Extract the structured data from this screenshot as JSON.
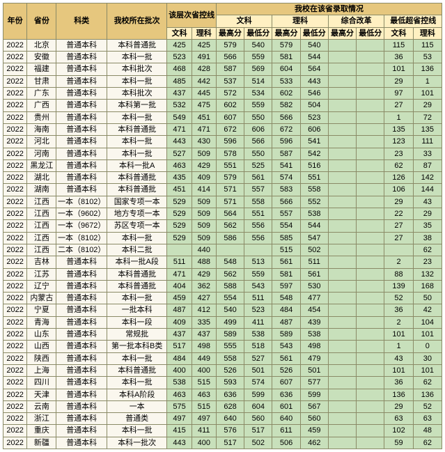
{
  "colors": {
    "hdr_primary": "#e6c77e",
    "hdr_secondary": "#fff0c2",
    "body_left": "#faf7ee",
    "body_right": "#c8e0bb",
    "border": "#8a8a66"
  },
  "header": {
    "year": "年份",
    "province": "省份",
    "category": "科类",
    "batch": "我校所在批次",
    "ctrl_line": "该层次省控线",
    "admission": "我校在该省录取情况",
    "wen": "文科",
    "li": "理科",
    "zonghe": "综合改革",
    "diff": "最低超省控线",
    "max": "最高分",
    "min": "最低分"
  },
  "rows": [
    {
      "yr": "2022",
      "pv": "北京",
      "kl": "普通本科",
      "pc": "本科普通批",
      "cw": "425",
      "cl": "425",
      "wmx": "579",
      "wmn": "540",
      "lmx": "579",
      "lmn": "540",
      "zmx": "",
      "zmn": "",
      "dw": "115",
      "dl": "115"
    },
    {
      "yr": "2022",
      "pv": "安徽",
      "kl": "普通本科",
      "pc": "本科一批",
      "cw": "523",
      "cl": "491",
      "wmx": "566",
      "wmn": "559",
      "lmx": "581",
      "lmn": "544",
      "zmx": "",
      "zmn": "",
      "dw": "36",
      "dl": "53"
    },
    {
      "yr": "2022",
      "pv": "福建",
      "kl": "普通本科",
      "pc": "本科批次",
      "cw": "468",
      "cl": "428",
      "wmx": "587",
      "wmn": "569",
      "lmx": "604",
      "lmn": "564",
      "zmx": "",
      "zmn": "",
      "dw": "101",
      "dl": "136"
    },
    {
      "yr": "2022",
      "pv": "甘肃",
      "kl": "普通本科",
      "pc": "本科一批",
      "cw": "485",
      "cl": "442",
      "wmx": "537",
      "wmn": "514",
      "lmx": "533",
      "lmn": "443",
      "zmx": "",
      "zmn": "",
      "dw": "29",
      "dl": "1"
    },
    {
      "yr": "2022",
      "pv": "广东",
      "kl": "普通本科",
      "pc": "本科批次",
      "cw": "437",
      "cl": "445",
      "wmx": "572",
      "wmn": "534",
      "lmx": "602",
      "lmn": "546",
      "zmx": "",
      "zmn": "",
      "dw": "97",
      "dl": "101"
    },
    {
      "yr": "2022",
      "pv": "广西",
      "kl": "普通本科",
      "pc": "本科第一批",
      "cw": "532",
      "cl": "475",
      "wmx": "602",
      "wmn": "559",
      "lmx": "582",
      "lmn": "504",
      "zmx": "",
      "zmn": "",
      "dw": "27",
      "dl": "29"
    },
    {
      "yr": "2022",
      "pv": "贵州",
      "kl": "普通本科",
      "pc": "本科一批",
      "cw": "549",
      "cl": "451",
      "wmx": "607",
      "wmn": "550",
      "lmx": "566",
      "lmn": "523",
      "zmx": "",
      "zmn": "",
      "dw": "1",
      "dl": "72"
    },
    {
      "yr": "2022",
      "pv": "海南",
      "kl": "普通本科",
      "pc": "本科普通批",
      "cw": "471",
      "cl": "471",
      "wmx": "672",
      "wmn": "606",
      "lmx": "672",
      "lmn": "606",
      "zmx": "",
      "zmn": "",
      "dw": "135",
      "dl": "135"
    },
    {
      "yr": "2022",
      "pv": "河北",
      "kl": "普通本科",
      "pc": "本科一批",
      "cw": "443",
      "cl": "430",
      "wmx": "596",
      "wmn": "566",
      "lmx": "596",
      "lmn": "541",
      "zmx": "",
      "zmn": "",
      "dw": "123",
      "dl": "111"
    },
    {
      "yr": "2022",
      "pv": "河南",
      "kl": "普通本科",
      "pc": "本科一批",
      "cw": "527",
      "cl": "509",
      "wmx": "578",
      "wmn": "550",
      "lmx": "587",
      "lmn": "542",
      "zmx": "",
      "zmn": "",
      "dw": "23",
      "dl": "33"
    },
    {
      "yr": "2022",
      "pv": "黑龙江",
      "kl": "普通本科",
      "pc": "本科一批A",
      "cw": "463",
      "cl": "429",
      "wmx": "551",
      "wmn": "525",
      "lmx": "541",
      "lmn": "516",
      "zmx": "",
      "zmn": "",
      "dw": "62",
      "dl": "87"
    },
    {
      "yr": "2022",
      "pv": "湖北",
      "kl": "普通本科",
      "pc": "本科普通批",
      "cw": "435",
      "cl": "409",
      "wmx": "579",
      "wmn": "561",
      "lmx": "574",
      "lmn": "551",
      "zmx": "",
      "zmn": "",
      "dw": "126",
      "dl": "142"
    },
    {
      "yr": "2022",
      "pv": "湖南",
      "kl": "普通本科",
      "pc": "本科普通批",
      "cw": "451",
      "cl": "414",
      "wmx": "571",
      "wmn": "557",
      "lmx": "583",
      "lmn": "558",
      "zmx": "",
      "zmn": "",
      "dw": "106",
      "dl": "144"
    },
    {
      "yr": "2022",
      "pv": "江西",
      "kl": "一本（8102）",
      "pc": "国家专项一本",
      "cw": "529",
      "cl": "509",
      "wmx": "571",
      "wmn": "558",
      "lmx": "566",
      "lmn": "552",
      "zmx": "",
      "zmn": "",
      "dw": "29",
      "dl": "43"
    },
    {
      "yr": "2022",
      "pv": "江西",
      "kl": "一本（9602）",
      "pc": "地方专项一本",
      "cw": "529",
      "cl": "509",
      "wmx": "564",
      "wmn": "551",
      "lmx": "557",
      "lmn": "538",
      "zmx": "",
      "zmn": "",
      "dw": "22",
      "dl": "29"
    },
    {
      "yr": "2022",
      "pv": "江西",
      "kl": "一本（9672）",
      "pc": "苏区专项一本",
      "cw": "529",
      "cl": "509",
      "wmx": "562",
      "wmn": "556",
      "lmx": "554",
      "lmn": "544",
      "zmx": "",
      "zmn": "",
      "dw": "27",
      "dl": "35"
    },
    {
      "yr": "2022",
      "pv": "江西",
      "kl": "一本（8102）",
      "pc": "本科一批",
      "cw": "529",
      "cl": "509",
      "wmx": "586",
      "wmn": "556",
      "lmx": "585",
      "lmn": "547",
      "zmx": "",
      "zmn": "",
      "dw": "27",
      "dl": "38"
    },
    {
      "yr": "2022",
      "pv": "江西",
      "kl": "二本（8102）",
      "pc": "本科二批",
      "cw": "",
      "cl": "440",
      "wmx": "",
      "wmn": "",
      "lmx": "515",
      "lmn": "502",
      "zmx": "",
      "zmn": "",
      "dw": "",
      "dl": "62"
    },
    {
      "yr": "2022",
      "pv": "吉林",
      "kl": "普通本科",
      "pc": "本科一批A段",
      "cw": "511",
      "cl": "488",
      "wmx": "548",
      "wmn": "513",
      "lmx": "561",
      "lmn": "511",
      "zmx": "",
      "zmn": "",
      "dw": "2",
      "dl": "23"
    },
    {
      "yr": "2022",
      "pv": "江苏",
      "kl": "普通本科",
      "pc": "本科普通批",
      "cw": "471",
      "cl": "429",
      "wmx": "562",
      "wmn": "559",
      "lmx": "581",
      "lmn": "561",
      "zmx": "",
      "zmn": "",
      "dw": "88",
      "dl": "132"
    },
    {
      "yr": "2022",
      "pv": "辽宁",
      "kl": "普通本科",
      "pc": "本科普通批",
      "cw": "404",
      "cl": "362",
      "wmx": "588",
      "wmn": "543",
      "lmx": "597",
      "lmn": "530",
      "zmx": "",
      "zmn": "",
      "dw": "139",
      "dl": "168"
    },
    {
      "yr": "2022",
      "pv": "内蒙古",
      "kl": "普通本科",
      "pc": "本科一批",
      "cw": "459",
      "cl": "427",
      "wmx": "554",
      "wmn": "511",
      "lmx": "548",
      "lmn": "477",
      "zmx": "",
      "zmn": "",
      "dw": "52",
      "dl": "50"
    },
    {
      "yr": "2022",
      "pv": "宁夏",
      "kl": "普通本科",
      "pc": "一批本科",
      "cw": "487",
      "cl": "412",
      "wmx": "540",
      "wmn": "523",
      "lmx": "484",
      "lmn": "454",
      "zmx": "",
      "zmn": "",
      "dw": "36",
      "dl": "42"
    },
    {
      "yr": "2022",
      "pv": "青海",
      "kl": "普通本科",
      "pc": "本科一段",
      "cw": "409",
      "cl": "335",
      "wmx": "499",
      "wmn": "411",
      "lmx": "487",
      "lmn": "439",
      "zmx": "",
      "zmn": "",
      "dw": "2",
      "dl": "104"
    },
    {
      "yr": "2022",
      "pv": "山东",
      "kl": "普通本科",
      "pc": "常规批",
      "cw": "437",
      "cl": "437",
      "wmx": "589",
      "wmn": "538",
      "lmx": "589",
      "lmn": "538",
      "zmx": "",
      "zmn": "",
      "dw": "101",
      "dl": "101"
    },
    {
      "yr": "2022",
      "pv": "山西",
      "kl": "普通本科",
      "pc": "第一批本科B类",
      "cw": "517",
      "cl": "498",
      "wmx": "555",
      "wmn": "518",
      "lmx": "543",
      "lmn": "498",
      "zmx": "",
      "zmn": "",
      "dw": "1",
      "dl": "0"
    },
    {
      "yr": "2022",
      "pv": "陕西",
      "kl": "普通本科",
      "pc": "本科一批",
      "cw": "484",
      "cl": "449",
      "wmx": "558",
      "wmn": "527",
      "lmx": "561",
      "lmn": "479",
      "zmx": "",
      "zmn": "",
      "dw": "43",
      "dl": "30"
    },
    {
      "yr": "2022",
      "pv": "上海",
      "kl": "普通本科",
      "pc": "本科普通批",
      "cw": "400",
      "cl": "400",
      "wmx": "526",
      "wmn": "501",
      "lmx": "526",
      "lmn": "501",
      "zmx": "",
      "zmn": "",
      "dw": "101",
      "dl": "101"
    },
    {
      "yr": "2022",
      "pv": "四川",
      "kl": "普通本科",
      "pc": "本科一批",
      "cw": "538",
      "cl": "515",
      "wmx": "593",
      "wmn": "574",
      "lmx": "607",
      "lmn": "577",
      "zmx": "",
      "zmn": "",
      "dw": "36",
      "dl": "62"
    },
    {
      "yr": "2022",
      "pv": "天津",
      "kl": "普通本科",
      "pc": "本科A阶段",
      "cw": "463",
      "cl": "463",
      "wmx": "636",
      "wmn": "599",
      "lmx": "636",
      "lmn": "599",
      "zmx": "",
      "zmn": "",
      "dw": "136",
      "dl": "136"
    },
    {
      "yr": "2022",
      "pv": "云南",
      "kl": "普通本科",
      "pc": "一本",
      "cw": "575",
      "cl": "515",
      "wmx": "628",
      "wmn": "604",
      "lmx": "601",
      "lmn": "567",
      "zmx": "",
      "zmn": "",
      "dw": "29",
      "dl": "52"
    },
    {
      "yr": "2022",
      "pv": "浙江",
      "kl": "普通本科",
      "pc": "普通类",
      "cw": "497",
      "cl": "497",
      "wmx": "640",
      "wmn": "560",
      "lmx": "640",
      "lmn": "560",
      "zmx": "",
      "zmn": "",
      "dw": "63",
      "dl": "63"
    },
    {
      "yr": "2022",
      "pv": "重庆",
      "kl": "普通本科",
      "pc": "本科一批",
      "cw": "415",
      "cl": "411",
      "wmx": "576",
      "wmn": "517",
      "lmx": "611",
      "lmn": "459",
      "zmx": "",
      "zmn": "",
      "dw": "102",
      "dl": "48"
    },
    {
      "yr": "2022",
      "pv": "新疆",
      "kl": "普通本科",
      "pc": "本科一批次",
      "cw": "443",
      "cl": "400",
      "wmx": "517",
      "wmn": "502",
      "lmx": "506",
      "lmn": "462",
      "zmx": "",
      "zmn": "",
      "dw": "59",
      "dl": "62"
    }
  ]
}
